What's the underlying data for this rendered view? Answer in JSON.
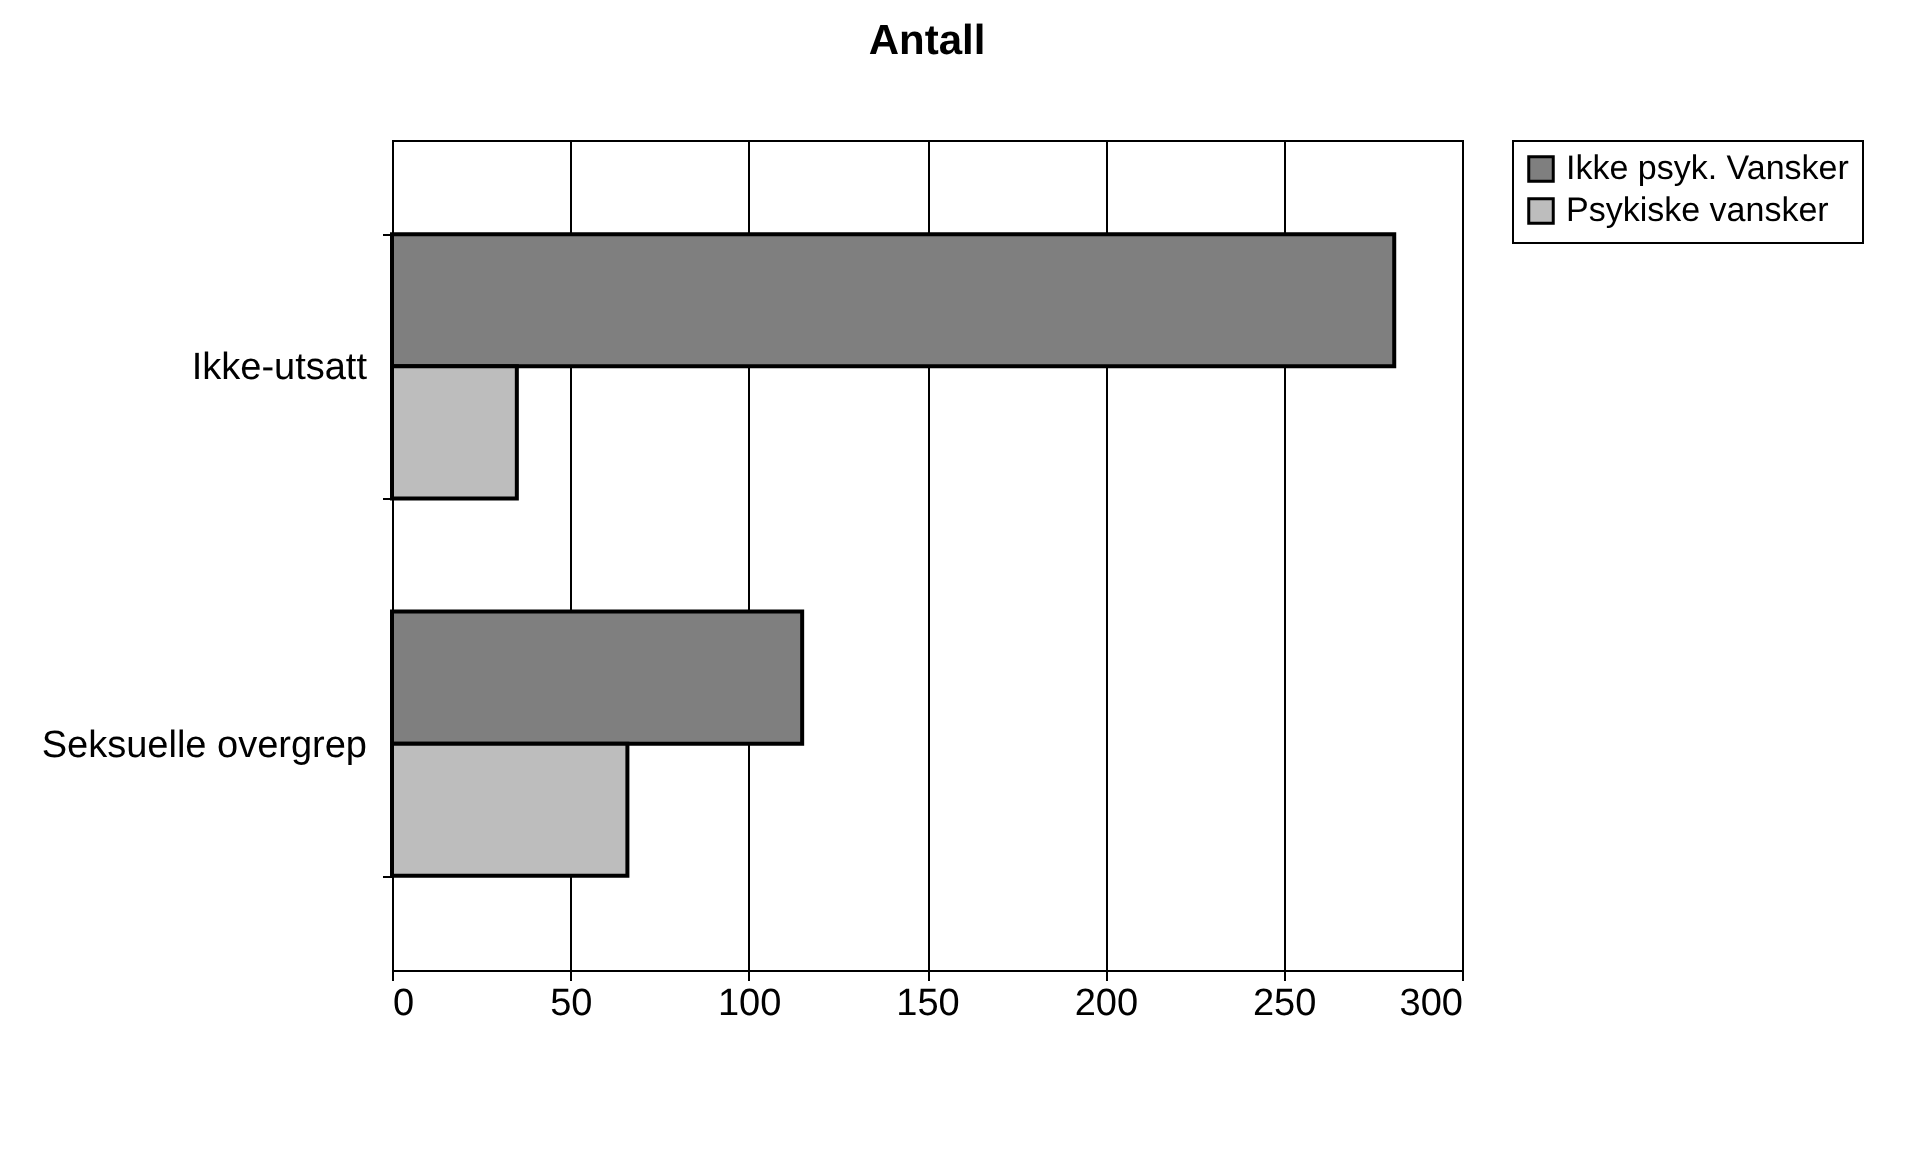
{
  "chart_data": {
    "type": "bar",
    "orientation": "horizontal",
    "title": "Antall",
    "categories": [
      "Ikke-utsatt",
      "Seksuelle overgrep"
    ],
    "series": [
      {
        "name": "Ikke psyk. Vansker",
        "color": "#7f7f7f",
        "values": [
          281,
          115
        ]
      },
      {
        "name": "Psykiske vansker",
        "color": "#bdbdbd",
        "values": [
          35,
          66
        ]
      }
    ],
    "xlim": [
      0,
      300
    ],
    "xticks": [
      0,
      50,
      100,
      150,
      200,
      250,
      300
    ],
    "grid": "x",
    "legend": "right"
  }
}
